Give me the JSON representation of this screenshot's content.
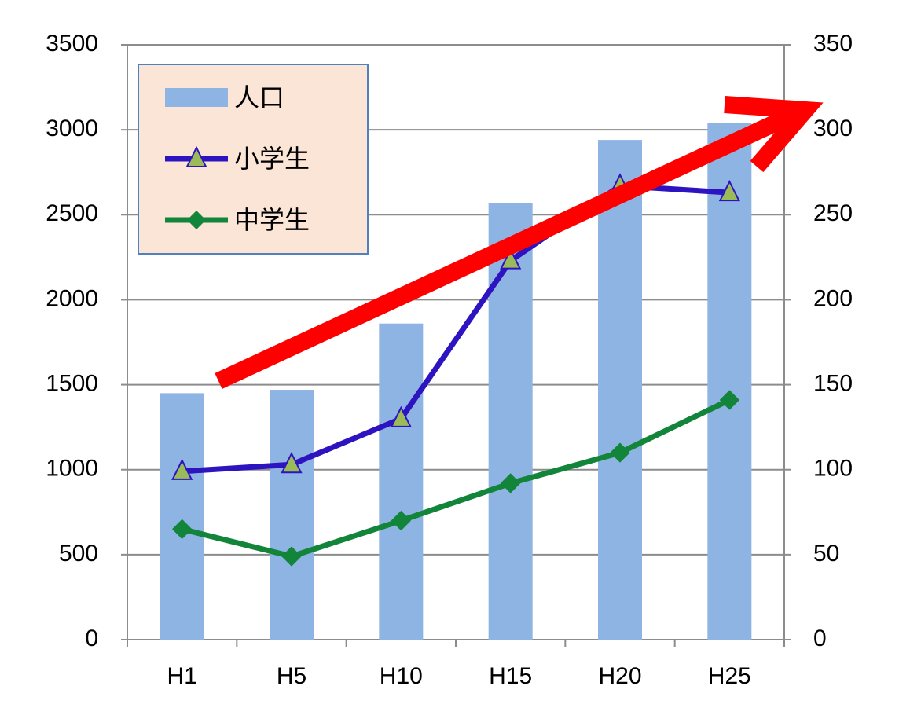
{
  "chart_data": {
    "type": "combo",
    "categories": [
      "H1",
      "H5",
      "H10",
      "H15",
      "H20",
      "H25"
    ],
    "series": [
      {
        "name": "人口",
        "type": "bar",
        "color": "#8eb4e3",
        "axis": "y",
        "values": [
          1450,
          1470,
          1860,
          2570,
          2940,
          3040
        ]
      },
      {
        "name": "小学生",
        "type": "line",
        "color": "#2e14c0",
        "marker": "triangle",
        "marker_color": "#9bbb59",
        "axis": "y2",
        "values": [
          99,
          103,
          130,
          223,
          267,
          263
        ]
      },
      {
        "name": "中学生",
        "type": "line",
        "color": "#12853a",
        "marker": "diamond",
        "marker_color": "#12853a",
        "axis": "y2",
        "values": [
          65,
          49,
          70,
          92,
          110,
          141
        ]
      }
    ],
    "ylim": [
      0,
      3500
    ],
    "yticks": [
      0,
      500,
      1000,
      1500,
      2000,
      2500,
      3000,
      3500
    ],
    "y2lim": [
      0,
      350
    ],
    "y2ticks": [
      0,
      50,
      100,
      150,
      200,
      250,
      300,
      350
    ],
    "grid": true,
    "legend": "top-left"
  }
}
